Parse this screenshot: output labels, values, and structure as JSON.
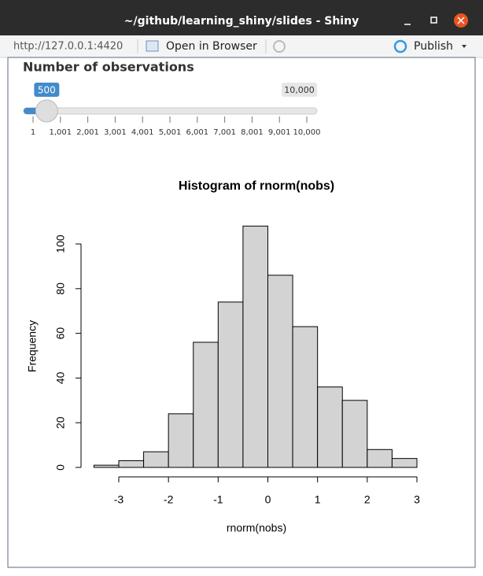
{
  "window": {
    "title": "~/github/learning_shiny/slides - Shiny",
    "url": "http://127.0.0.1:4420",
    "open_in_browser": "Open in Browser",
    "publish": "Publish"
  },
  "slider": {
    "label": "Number of observations",
    "min": 1,
    "max": {
      "value": 10000,
      "label": "10,000"
    },
    "value": 500,
    "ticks": [
      1,
      {
        "value": 1001,
        "label": "1,001"
      },
      {
        "value": 2001,
        "label": "2,001"
      },
      {
        "value": 3001,
        "label": "3,001"
      },
      {
        "value": 4001,
        "label": "4,001"
      },
      {
        "value": 5001,
        "label": "5,001"
      },
      {
        "value": 6001,
        "label": "6,001"
      },
      {
        "value": 7001,
        "label": "7,001"
      },
      {
        "value": 8001,
        "label": "8,001"
      },
      {
        "value": 9001,
        "label": "9,001"
      },
      {
        "value": 10000,
        "label": "10,000"
      }
    ]
  },
  "chart_data": {
    "type": "histogram",
    "title": "Histogram of rnorm(nobs)",
    "xlabel": "rnorm(nobs)",
    "ylabel": "Frequency",
    "bins": [
      -3.5,
      -3,
      -2.5,
      -2,
      -1.5,
      -1,
      -0.5,
      0,
      0.5,
      1,
      1.5,
      2,
      2.5,
      3
    ],
    "values": [
      1,
      3,
      7,
      24,
      56,
      74,
      108,
      86,
      63,
      36,
      30,
      8,
      4
    ],
    "color": "#d3d3d3",
    "xlim": [
      -3.5,
      3
    ],
    "ylim": [
      0,
      108
    ],
    "xticks": [
      -3,
      -2,
      -1,
      0,
      1,
      2,
      3
    ],
    "yticks": [
      0,
      20,
      40,
      60,
      80,
      100
    ]
  }
}
